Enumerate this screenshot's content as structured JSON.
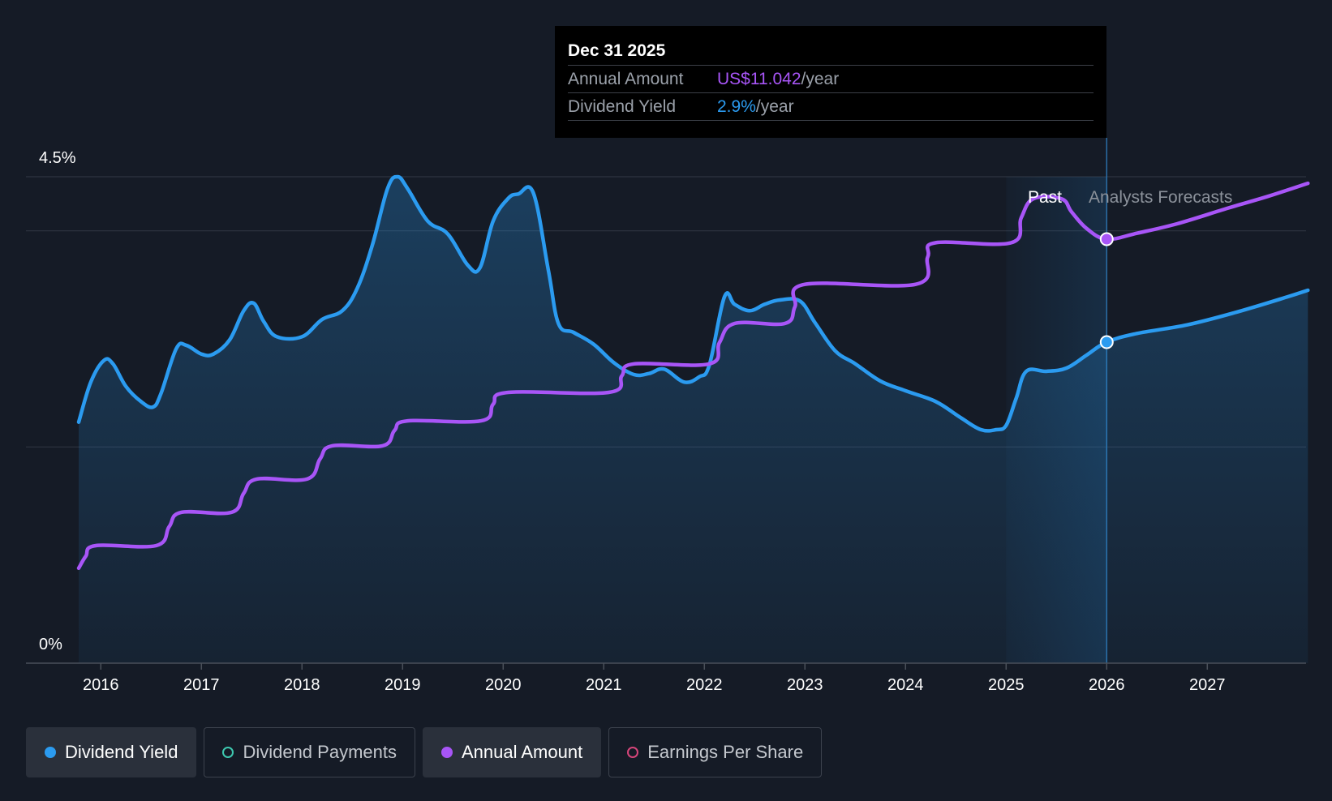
{
  "tooltip": {
    "date": "Dec 31 2025",
    "rows": [
      {
        "label": "Annual Amount",
        "value": "US$11.042",
        "unit": "/year",
        "color": "#a855f7"
      },
      {
        "label": "Dividend Yield",
        "value": "2.9%",
        "unit": "/year",
        "color": "#2b9bf0"
      }
    ]
  },
  "legend": [
    {
      "label": "Dividend Yield",
      "color": "#2b9bf0",
      "active": true,
      "filled": true
    },
    {
      "label": "Dividend Payments",
      "color": "#3ec9b0",
      "active": false,
      "filled": false
    },
    {
      "label": "Annual Amount",
      "color": "#a855f7",
      "active": true,
      "filled": true
    },
    {
      "label": "Earnings Per Share",
      "color": "#d6457a",
      "active": false,
      "filled": false
    }
  ],
  "colors": {
    "background": "#151b26",
    "yield_line": "#2b9bf0",
    "amount_line": "#a855f7",
    "grid": "#2e3440",
    "axis_text": "#ffffff"
  },
  "chart_data": {
    "type": "line",
    "y_axis": {
      "min": 0,
      "max": 4.5,
      "unit": "%",
      "tick_labels": [
        "0%",
        "4.5%"
      ]
    },
    "x_axis": {
      "tick_labels": [
        "2016",
        "2017",
        "2018",
        "2019",
        "2020",
        "2021",
        "2022",
        "2023",
        "2024",
        "2025",
        "2026",
        "2027"
      ],
      "range": [
        2015.78,
        2028.0
      ]
    },
    "regions": {
      "past_label": "Past",
      "forecast_label": "Analysts Forecasts",
      "past_band_start": 2025.0,
      "today": 2026.0
    },
    "series": [
      {
        "name": "Dividend Yield",
        "unit": "%",
        "points": [
          [
            2015.78,
            2.23
          ],
          [
            2015.9,
            2.6
          ],
          [
            2016.03,
            2.8
          ],
          [
            2016.12,
            2.77
          ],
          [
            2016.25,
            2.56
          ],
          [
            2016.4,
            2.42
          ],
          [
            2016.52,
            2.37
          ],
          [
            2016.6,
            2.5
          ],
          [
            2016.75,
            2.91
          ],
          [
            2016.85,
            2.94
          ],
          [
            2017.0,
            2.86
          ],
          [
            2017.12,
            2.86
          ],
          [
            2017.28,
            2.99
          ],
          [
            2017.42,
            3.26
          ],
          [
            2017.52,
            3.33
          ],
          [
            2017.62,
            3.16
          ],
          [
            2017.75,
            3.02
          ],
          [
            2018.0,
            3.02
          ],
          [
            2018.2,
            3.18
          ],
          [
            2018.4,
            3.26
          ],
          [
            2018.55,
            3.47
          ],
          [
            2018.7,
            3.87
          ],
          [
            2018.85,
            4.39
          ],
          [
            2018.95,
            4.5
          ],
          [
            2019.05,
            4.39
          ],
          [
            2019.25,
            4.09
          ],
          [
            2019.45,
            3.97
          ],
          [
            2019.65,
            3.68
          ],
          [
            2019.77,
            3.66
          ],
          [
            2019.9,
            4.09
          ],
          [
            2020.05,
            4.3
          ],
          [
            2020.15,
            4.34
          ],
          [
            2020.3,
            4.35
          ],
          [
            2020.45,
            3.63
          ],
          [
            2020.55,
            3.14
          ],
          [
            2020.7,
            3.06
          ],
          [
            2020.9,
            2.95
          ],
          [
            2021.1,
            2.78
          ],
          [
            2021.3,
            2.67
          ],
          [
            2021.45,
            2.68
          ],
          [
            2021.6,
            2.72
          ],
          [
            2021.8,
            2.6
          ],
          [
            2021.95,
            2.65
          ],
          [
            2022.05,
            2.76
          ],
          [
            2022.2,
            3.39
          ],
          [
            2022.3,
            3.32
          ],
          [
            2022.45,
            3.26
          ],
          [
            2022.6,
            3.32
          ],
          [
            2022.75,
            3.36
          ],
          [
            2022.95,
            3.35
          ],
          [
            2023.1,
            3.15
          ],
          [
            2023.3,
            2.89
          ],
          [
            2023.5,
            2.77
          ],
          [
            2023.75,
            2.61
          ],
          [
            2024.0,
            2.52
          ],
          [
            2024.3,
            2.42
          ],
          [
            2024.55,
            2.27
          ],
          [
            2024.75,
            2.16
          ],
          [
            2024.9,
            2.16
          ],
          [
            2025.0,
            2.2
          ],
          [
            2025.1,
            2.45
          ],
          [
            2025.2,
            2.7
          ],
          [
            2025.4,
            2.7
          ],
          [
            2025.6,
            2.73
          ],
          [
            2025.8,
            2.85
          ],
          [
            2026.0,
            2.97
          ],
          [
            2026.3,
            3.05
          ],
          [
            2026.8,
            3.13
          ],
          [
            2027.3,
            3.25
          ],
          [
            2027.8,
            3.39
          ],
          [
            2028.0,
            3.45
          ]
        ]
      },
      {
        "name": "Annual Amount",
        "unit": "US$",
        "points": [
          [
            2015.78,
            1.0
          ],
          [
            2015.85,
            1.1
          ],
          [
            2015.95,
            1.19
          ],
          [
            2016.55,
            1.19
          ],
          [
            2016.68,
            1.35
          ],
          [
            2016.8,
            1.47
          ],
          [
            2017.3,
            1.47
          ],
          [
            2017.42,
            1.63
          ],
          [
            2017.55,
            1.75
          ],
          [
            2018.05,
            1.75
          ],
          [
            2018.18,
            1.92
          ],
          [
            2018.3,
            2.03
          ],
          [
            2018.8,
            2.03
          ],
          [
            2018.92,
            2.16
          ],
          [
            2019.05,
            2.24
          ],
          [
            2019.78,
            2.24
          ],
          [
            2019.9,
            2.38
          ],
          [
            2020.05,
            2.48
          ],
          [
            2021.05,
            2.48
          ],
          [
            2021.18,
            2.62
          ],
          [
            2021.3,
            2.72
          ],
          [
            2022.05,
            2.72
          ],
          [
            2022.15,
            2.9
          ],
          [
            2022.3,
            3.06
          ],
          [
            2022.8,
            3.06
          ],
          [
            2022.9,
            3.2
          ],
          [
            2023.0,
            3.39
          ],
          [
            2024.1,
            3.39
          ],
          [
            2024.22,
            3.62
          ],
          [
            2024.3,
            3.74
          ],
          [
            2025.05,
            3.74
          ],
          [
            2025.15,
            3.95
          ],
          [
            2025.27,
            4.11
          ],
          [
            2025.55,
            4.11
          ],
          [
            2025.65,
            4.0
          ],
          [
            2025.8,
            3.86
          ],
          [
            2026.0,
            3.77
          ],
          [
            2026.3,
            3.82
          ],
          [
            2026.7,
            3.9
          ],
          [
            2027.2,
            4.03
          ],
          [
            2027.6,
            4.13
          ],
          [
            2028.0,
            4.24
          ]
        ]
      }
    ]
  }
}
